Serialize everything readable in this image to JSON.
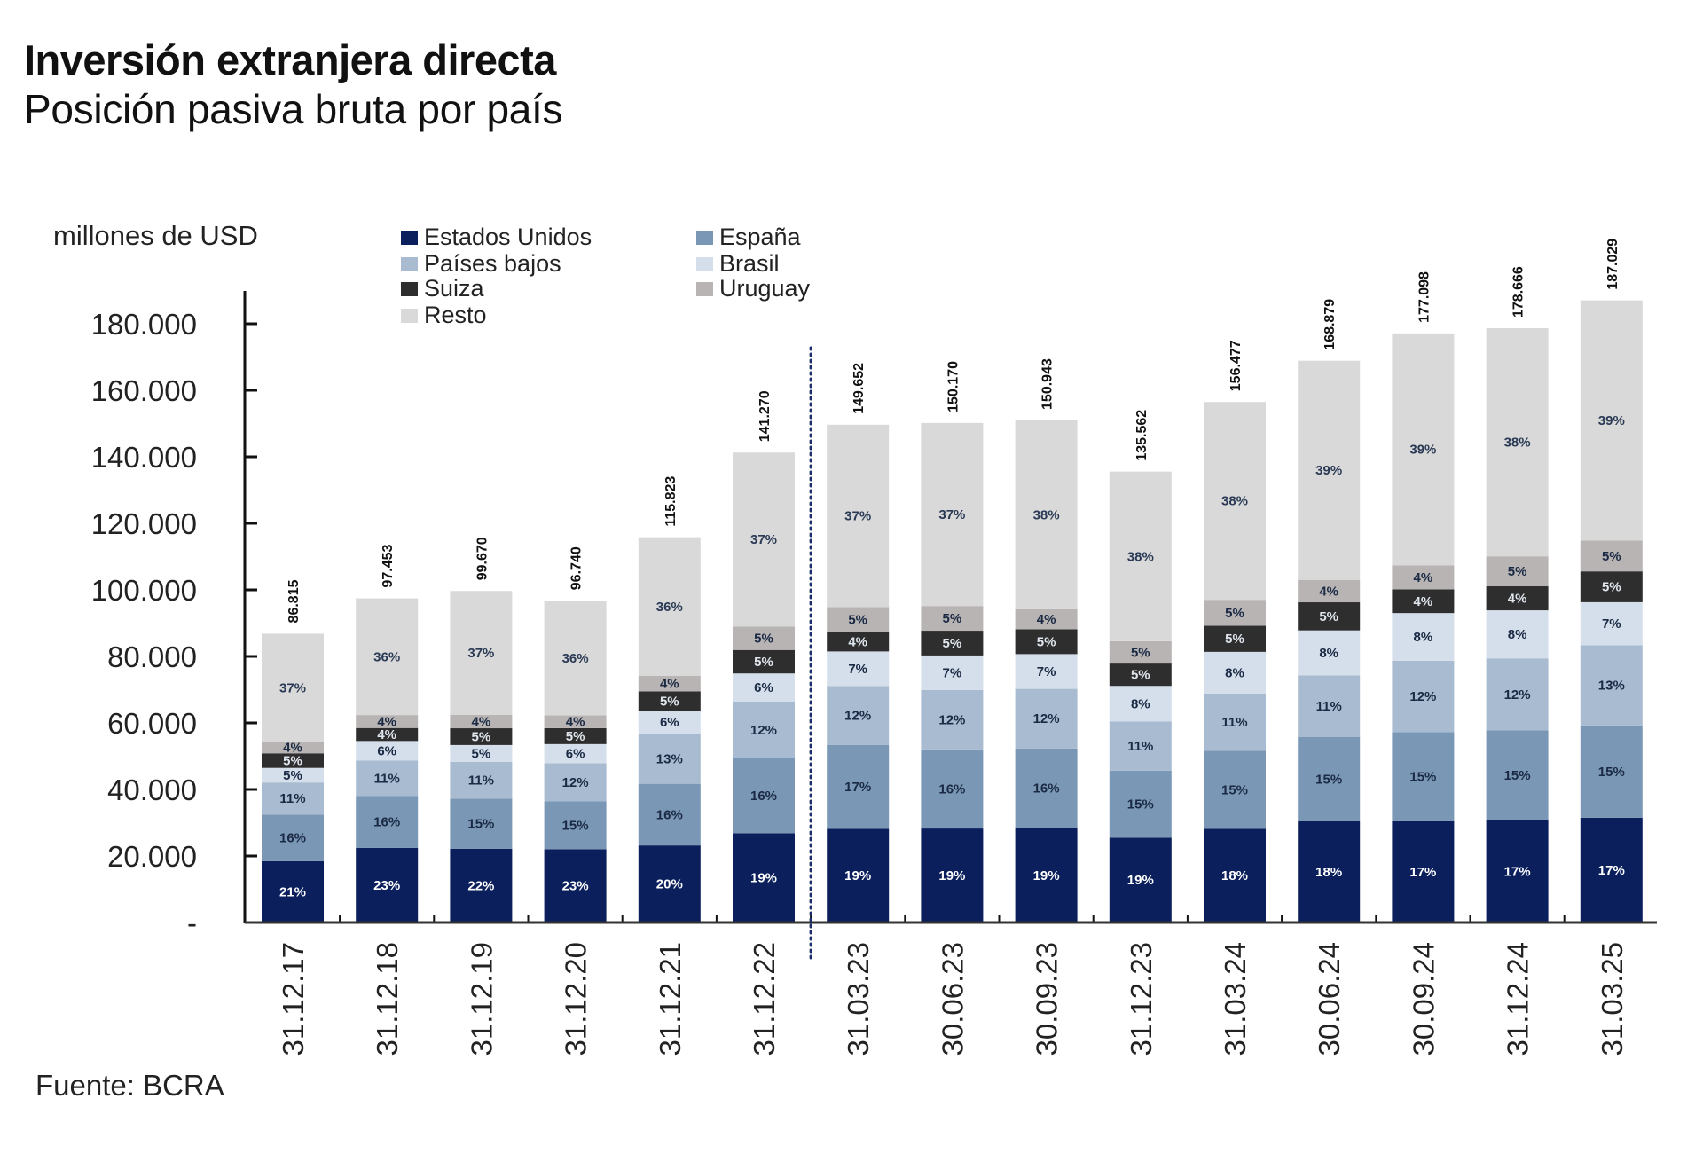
{
  "header": {
    "title": "Inversión extranjera directa",
    "subtitle": "Posición pasiva bruta por país"
  },
  "footer": {
    "source": "Fuente: BCRA"
  },
  "chart_data": {
    "type": "bar",
    "stacked": true,
    "title": "Inversión extranjera directa",
    "subtitle": "Posición pasiva bruta por país",
    "ylabel": "millones de USD",
    "xlabel": "",
    "ylim": [
      0,
      190000
    ],
    "yticks": [
      0,
      20000,
      40000,
      60000,
      80000,
      100000,
      120000,
      140000,
      160000,
      180000
    ],
    "ytick_labels": [
      "-",
      "20.000",
      "40.000",
      "60.000",
      "80.000",
      "100.000",
      "120.000",
      "140.000",
      "160.000",
      "180.000"
    ],
    "grid": false,
    "legend_position": "top",
    "separator_after_category": "31.12.22",
    "categories": [
      "31.12.17",
      "31.12.18",
      "31.12.19",
      "31.12.20",
      "31.12.21",
      "31.12.22",
      "31.03.23",
      "30.06.23",
      "30.09.23",
      "31.12.23",
      "31.03.24",
      "30.06.24",
      "30.09.24",
      "31.12.24",
      "31.03.25"
    ],
    "totals": [
      86815,
      97453,
      99670,
      96740,
      115823,
      141270,
      149652,
      150170,
      150943,
      135562,
      156477,
      168879,
      177098,
      178666,
      187029
    ],
    "total_labels": [
      "86.815",
      "97.453",
      "99.670",
      "96.740",
      "115.823",
      "141.270",
      "149.652",
      "150.170",
      "150.943",
      "135.562",
      "156.477",
      "168.879",
      "177.098",
      "178.666",
      "187.029"
    ],
    "series_unit": "percent of total",
    "series": [
      {
        "name": "Estados Unidos",
        "color": "#0a1f5c",
        "label_color": "#ffffff",
        "values": [
          21,
          23,
          22,
          23,
          20,
          19,
          19,
          19,
          19,
          19,
          18,
          18,
          17,
          17,
          17
        ]
      },
      {
        "name": "España",
        "color": "#7a97b5",
        "label_color": "#1a2a44",
        "values": [
          16,
          16,
          15,
          15,
          16,
          16,
          17,
          16,
          16,
          15,
          15,
          15,
          15,
          15,
          15
        ]
      },
      {
        "name": "Países bajos",
        "color": "#a9bbd0",
        "label_color": "#1a2a44",
        "values": [
          11,
          11,
          11,
          12,
          13,
          12,
          12,
          12,
          12,
          11,
          11,
          11,
          12,
          12,
          13
        ]
      },
      {
        "name": "Brasil",
        "color": "#d5dfeb",
        "label_color": "#1a2a44",
        "values": [
          5,
          6,
          5,
          6,
          6,
          6,
          7,
          7,
          7,
          8,
          8,
          8,
          8,
          8,
          7
        ]
      },
      {
        "name": "Suiza",
        "color": "#2e2e2e",
        "label_color": "#e0e6ee",
        "values": [
          5,
          4,
          5,
          5,
          5,
          5,
          4,
          5,
          5,
          5,
          5,
          5,
          4,
          4,
          5
        ]
      },
      {
        "name": "Uruguay",
        "color": "#b8b4b3",
        "label_color": "#1a2a44",
        "values": [
          4,
          4,
          4,
          4,
          4,
          5,
          5,
          5,
          4,
          5,
          5,
          4,
          4,
          5,
          5
        ]
      },
      {
        "name": "Resto",
        "color": "#d9d9d9",
        "label_color": "#2a3a55",
        "values": [
          37,
          36,
          37,
          36,
          36,
          37,
          37,
          37,
          38,
          38,
          38,
          39,
          39,
          38,
          39
        ]
      }
    ]
  }
}
